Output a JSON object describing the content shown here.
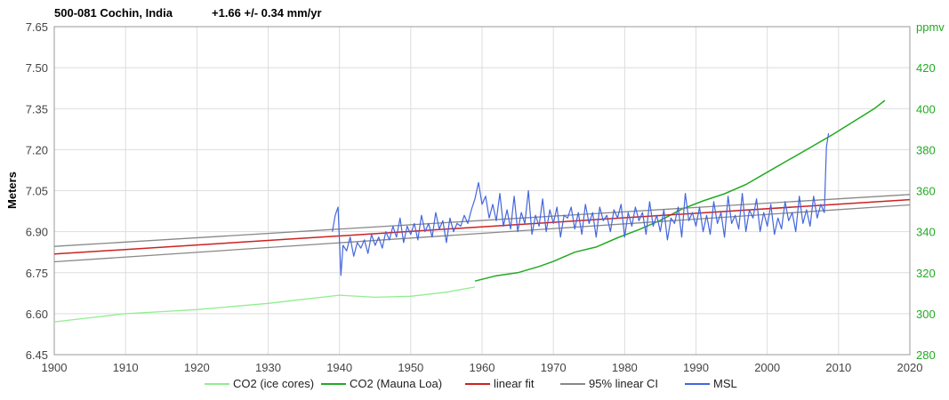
{
  "chart_data": {
    "type": "line",
    "title": "500-081 Cochin, India",
    "subtitle": "+1.66 +/- 0.34 mm/yr",
    "ylabel": "Meters",
    "y2label": "ppmv",
    "xlim": [
      1900,
      2020
    ],
    "ylim": [
      6.45,
      7.65
    ],
    "y2lim": [
      280,
      440
    ],
    "x_ticks": [
      "1900",
      "1910",
      "1920",
      "1930",
      "1940",
      "1950",
      "1960",
      "1970",
      "1980",
      "1990",
      "2000",
      "2010",
      "2020"
    ],
    "y_ticks": [
      "6.45",
      "6.60",
      "6.75",
      "6.90",
      "7.05",
      "7.20",
      "7.35",
      "7.50",
      "7.65"
    ],
    "y2_ticks": [
      "280",
      "300",
      "320",
      "340",
      "360",
      "380",
      "400",
      "420"
    ],
    "grid": true,
    "legend_position": "bottom",
    "series": [
      {
        "name": "CO2 (ice cores)",
        "axis": "right",
        "color": "#90ee90",
        "x": [
          1900,
          1905,
          1910,
          1915,
          1920,
          1925,
          1930,
          1935,
          1940,
          1945,
          1950,
          1955,
          1959
        ],
        "values": [
          296,
          298,
          300,
          301,
          302,
          303.5,
          305,
          307,
          309,
          308,
          308.5,
          310.5,
          313
        ]
      },
      {
        "name": "CO2 (Mauna Loa)",
        "axis": "right",
        "color": "#22aa22",
        "x": [
          1959,
          1962,
          1965,
          1968,
          1970,
          1973,
          1976,
          1979,
          1982,
          1985,
          1988,
          1991,
          1994,
          1997,
          2000,
          2003,
          2006,
          2009,
          2012,
          2015,
          2016.5
        ],
        "values": [
          315.9,
          318.5,
          320,
          323,
          325.5,
          330,
          332.5,
          337,
          341,
          345.5,
          351,
          355,
          358.5,
          363,
          369,
          375,
          381,
          387,
          393.5,
          400,
          404
        ]
      },
      {
        "name": "linear fit",
        "axis": "left",
        "color": "#cc2222",
        "x": [
          1900,
          2020
        ],
        "values": [
          6.818,
          7.017
        ]
      },
      {
        "name": "95% linear CI",
        "axis": "left",
        "color": "#888888",
        "x": [
          1900,
          2020
        ],
        "values": [
          6.846,
          7.036
        ],
        "lower_values": [
          6.79,
          6.998
        ]
      },
      {
        "name": "MSL",
        "axis": "left",
        "color": "#4466dd",
        "x": [
          1939.0,
          1939.4,
          1939.8,
          1940.2,
          1940.5,
          1941.0,
          1941.5,
          1942.0,
          1942.5,
          1943.0,
          1943.5,
          1944.0,
          1944.5,
          1945.0,
          1945.5,
          1946.0,
          1946.5,
          1947.0,
          1947.5,
          1948.0,
          1948.5,
          1949.0,
          1949.5,
          1950.0,
          1950.5,
          1951.0,
          1951.5,
          1952.0,
          1952.5,
          1953.0,
          1953.5,
          1954.0,
          1954.5,
          1955.0,
          1955.5,
          1956.0,
          1956.5,
          1957.0,
          1957.5,
          1958.0,
          1958.5,
          1959.0,
          1959.5,
          1960.0,
          1960.5,
          1961.0,
          1961.5,
          1962.0,
          1962.5,
          1963.0,
          1963.5,
          1964.0,
          1964.5,
          1965.0,
          1965.5,
          1966.0,
          1966.5,
          1967.0,
          1967.5,
          1968.0,
          1968.5,
          1969.0,
          1969.5,
          1970.0,
          1970.5,
          1971.0,
          1971.5,
          1972.0,
          1972.5,
          1973.0,
          1973.5,
          1974.0,
          1974.5,
          1975.0,
          1975.5,
          1976.0,
          1976.5,
          1977.0,
          1977.5,
          1978.0,
          1978.5,
          1979.0,
          1979.5,
          1980.0,
          1980.5,
          1981.0,
          1981.5,
          1982.0,
          1982.5,
          1983.0,
          1983.5,
          1984.0,
          1984.5,
          1985.0,
          1985.5,
          1986.0,
          1986.5,
          1987.0,
          1987.5,
          1988.0,
          1988.5,
          1989.0,
          1989.5,
          1990.0,
          1990.5,
          1991.0,
          1991.5,
          1992.0,
          1992.5,
          1993.0,
          1993.5,
          1994.0,
          1994.5,
          1995.0,
          1995.5,
          1996.0,
          1996.5,
          1997.0,
          1997.5,
          1998.0,
          1998.5,
          1999.0,
          1999.5,
          2000.0,
          2000.5,
          2001.0,
          2001.5,
          2002.0,
          2002.5,
          2003.0,
          2003.5,
          2004.0,
          2004.5,
          2005.0,
          2005.5,
          2006.0,
          2006.5,
          2007.0,
          2007.5,
          2008.0,
          2008.3,
          2008.6
        ],
        "values": [
          6.9,
          6.96,
          6.99,
          6.74,
          6.85,
          6.83,
          6.88,
          6.81,
          6.86,
          6.84,
          6.87,
          6.82,
          6.89,
          6.85,
          6.88,
          6.84,
          6.9,
          6.87,
          6.92,
          6.88,
          6.95,
          6.86,
          6.92,
          6.89,
          6.93,
          6.87,
          6.96,
          6.9,
          6.93,
          6.88,
          6.97,
          6.91,
          6.94,
          6.86,
          6.95,
          6.9,
          6.93,
          6.92,
          6.96,
          6.93,
          6.98,
          7.02,
          7.08,
          7.0,
          7.03,
          6.95,
          7.0,
          6.94,
          7.04,
          6.92,
          6.98,
          6.91,
          7.03,
          6.9,
          6.97,
          6.93,
          7.05,
          6.89,
          6.96,
          6.92,
          7.02,
          6.9,
          6.98,
          6.93,
          6.99,
          6.88,
          6.96,
          6.95,
          6.99,
          6.91,
          6.97,
          6.89,
          7.0,
          6.93,
          6.97,
          6.88,
          6.99,
          6.94,
          6.96,
          6.9,
          6.98,
          6.95,
          7.0,
          6.88,
          6.97,
          6.92,
          6.99,
          6.94,
          6.97,
          6.89,
          7.01,
          6.92,
          6.96,
          6.9,
          6.98,
          6.87,
          6.95,
          6.93,
          6.99,
          6.88,
          7.04,
          6.94,
          6.97,
          6.92,
          6.99,
          6.9,
          6.96,
          6.89,
          7.01,
          6.93,
          6.97,
          6.88,
          7.03,
          6.93,
          6.96,
          6.91,
          7.04,
          6.9,
          6.98,
          6.95,
          7.02,
          6.9,
          6.97,
          6.92,
          7.0,
          6.89,
          6.95,
          6.91,
          7.01,
          6.94,
          6.97,
          6.9,
          7.03,
          6.93,
          6.98,
          6.92,
          7.03,
          6.95,
          7.0,
          6.97,
          7.21,
          7.26
        ]
      }
    ]
  }
}
